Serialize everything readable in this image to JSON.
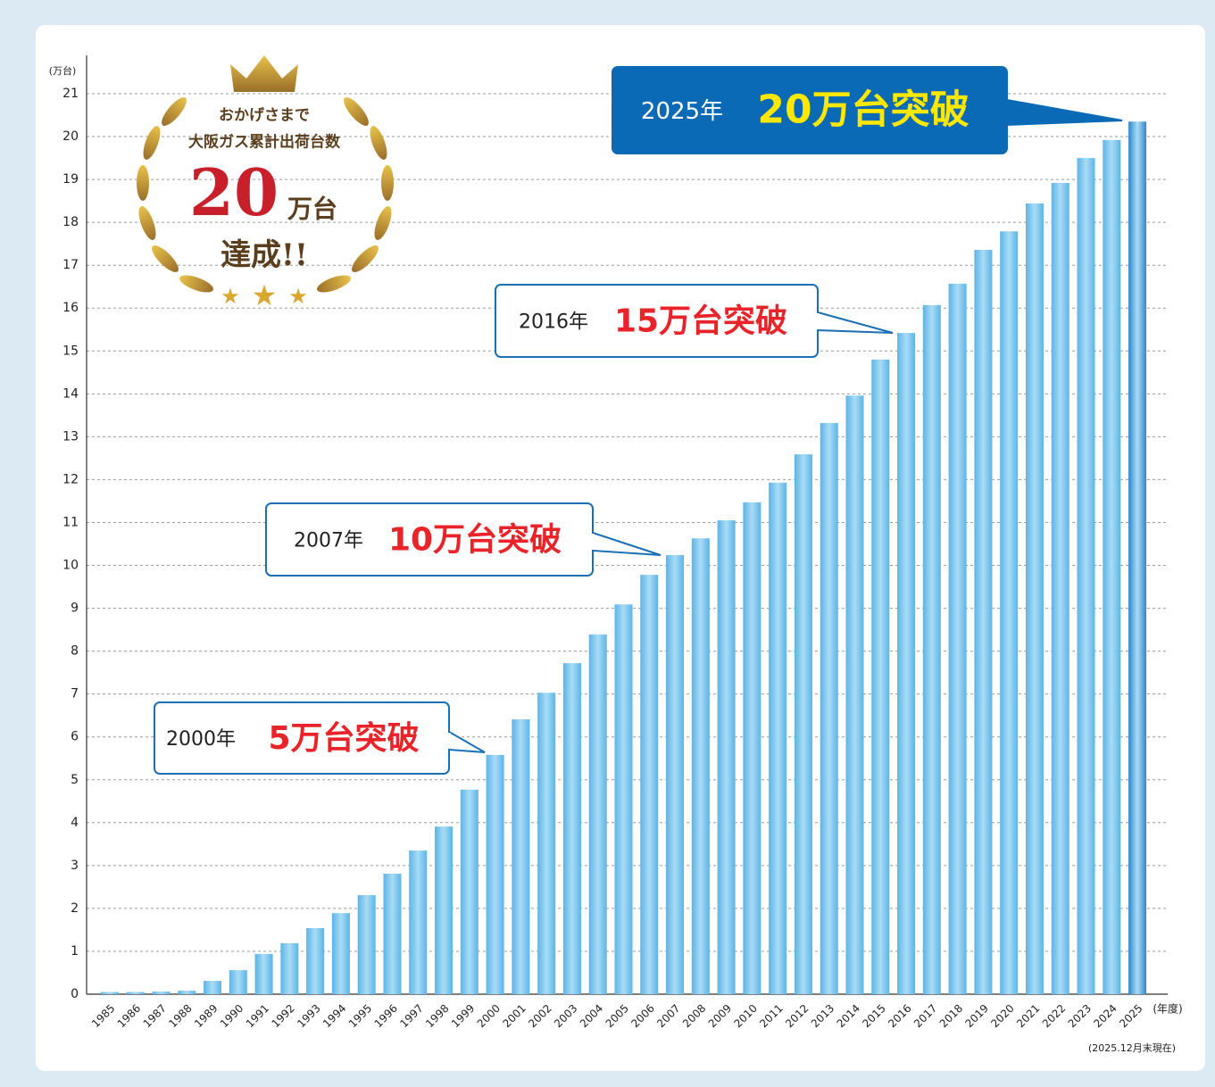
{
  "chart_data": {
    "type": "bar",
    "y_unit": "(万台)",
    "x_unit": "(年度)",
    "note": "(2025.12月末現在)",
    "badge": {
      "line1": "おかげさまで",
      "line2": "大阪ガス累計出荷台数",
      "number": "20",
      "unit": "万台",
      "line3": "達成!!"
    },
    "annotations": [
      {
        "year": "2000年",
        "text": "5万台突破"
      },
      {
        "year": "2007年",
        "text": "10万台突破"
      },
      {
        "year": "2016年",
        "text": "15万台突破"
      },
      {
        "year": "2025年",
        "text": "20万台突破"
      }
    ],
    "categories": [
      "1985",
      "1986",
      "1987",
      "1988",
      "1989",
      "1990",
      "1991",
      "1992",
      "1993",
      "1994",
      "1995",
      "1996",
      "1997",
      "1998",
      "1999",
      "2000",
      "2001",
      "2002",
      "2003",
      "2004",
      "2005",
      "2006",
      "2007",
      "2008",
      "2009",
      "2010",
      "2011",
      "2012",
      "2013",
      "2014",
      "2015",
      "2016",
      "2017",
      "2018",
      "2019",
      "2020",
      "2021",
      "2022",
      "2023",
      "2024",
      "2025"
    ],
    "values": [
      0.05,
      0.05,
      0.06,
      0.08,
      0.31,
      0.56,
      0.94,
      1.19,
      1.54,
      1.89,
      2.31,
      2.81,
      3.35,
      3.91,
      4.77,
      5.58,
      6.41,
      7.03,
      7.72,
      8.39,
      9.09,
      9.78,
      10.24,
      10.63,
      11.05,
      11.47,
      11.93,
      12.59,
      13.32,
      13.96,
      14.8,
      15.42,
      16.07,
      16.57,
      17.36,
      17.79,
      18.44,
      18.92,
      19.5,
      19.92,
      20.35
    ],
    "colors": [
      "#5cb4e6",
      "#5cb4e6",
      "#5cb4e6",
      "#5cb4e6",
      "#5cb4e6",
      "#5cb4e6",
      "#5cb4e6",
      "#5cb4e6",
      "#5cb4e6",
      "#5cb4e6",
      "#5cb4e6",
      "#5cb4e6",
      "#5cb4e6",
      "#5cb4e6",
      "#5cb4e6",
      "#5cb4e6",
      "#5cb4e6",
      "#5cb4e6",
      "#5cb4e6",
      "#5cb4e6",
      "#5cb4e6",
      "#5cb4e6",
      "#5cb4e6",
      "#5cb4e6",
      "#5cb4e6",
      "#5cb4e6",
      "#5cb4e6",
      "#5cb4e6",
      "#5cb4e6",
      "#5cb4e6",
      "#5cb4e6",
      "#5cb4e6",
      "#5cb4e6",
      "#5cb4e6",
      "#5cb4e6",
      "#5cb4e6",
      "#5cb4e6",
      "#5cb4e6",
      "#5cb4e6",
      "#5cb4e6",
      "#2f86cc"
    ],
    "ylim": [
      0,
      21
    ],
    "yticks": [
      0,
      1,
      2,
      3,
      4,
      5,
      6,
      7,
      8,
      9,
      10,
      11,
      12,
      13,
      14,
      15,
      16,
      17,
      18,
      19,
      20,
      21
    ],
    "grid": true
  }
}
